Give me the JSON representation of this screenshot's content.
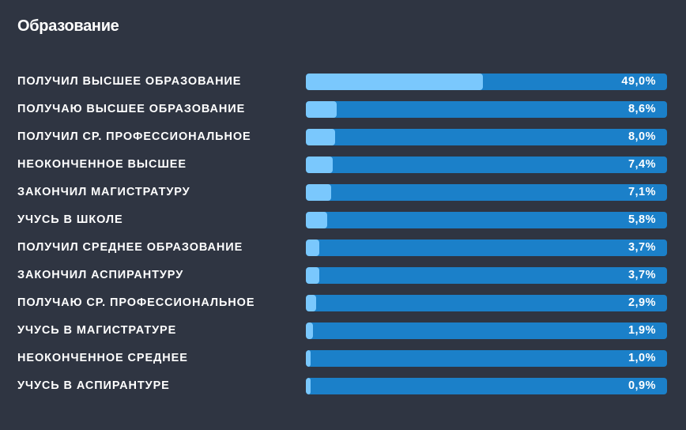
{
  "page": {
    "title": "Образование",
    "background_color": "#2f3542"
  },
  "chart_data": {
    "type": "bar",
    "orientation": "horizontal",
    "title": "Образование",
    "unit": "%",
    "xlim": [
      0,
      100
    ],
    "categories": [
      "Получил высшее образование",
      "Получаю высшее образование",
      "Получил ср. профессиональное",
      "Неоконченное высшее",
      "Закончил магистратуру",
      "Учусь в школе",
      "Получил среднее образование",
      "Закончил аспирантуру",
      "Получаю ср. профессиональное",
      "Учусь в магистратуре",
      "Неоконченное среднее",
      "Учусь в аспирантуре"
    ],
    "values": [
      49.0,
      8.6,
      8.0,
      7.4,
      7.1,
      5.8,
      3.7,
      3.7,
      2.9,
      1.9,
      1.0,
      0.9
    ],
    "value_labels": [
      "49,0%",
      "8,6%",
      "8,0%",
      "7,4%",
      "7,1%",
      "5,8%",
      "3,7%",
      "3,7%",
      "2,9%",
      "1,9%",
      "1,0%",
      "0,9%"
    ],
    "colors": {
      "track": "#1b80c9",
      "fill": "#7ac8fd"
    },
    "grid": false,
    "legend": "none"
  }
}
